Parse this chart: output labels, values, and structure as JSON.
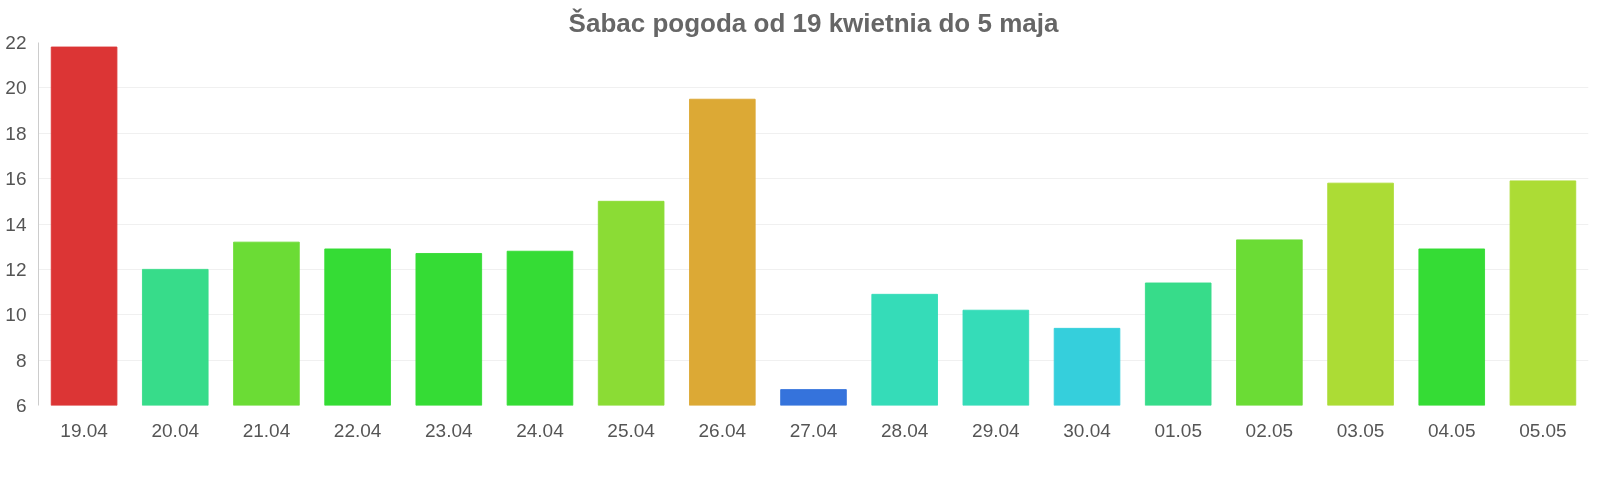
{
  "chart_data": {
    "type": "bar",
    "title": "Šabac pogoda od 19 kwietnia do 5 maja",
    "categories": [
      "19.04",
      "20.04",
      "21.04",
      "22.04",
      "23.04",
      "24.04",
      "25.04",
      "26.04",
      "27.04",
      "28.04",
      "29.04",
      "30.04",
      "01.05",
      "02.05",
      "03.05",
      "04.05",
      "05.05"
    ],
    "values": [
      21.8,
      12.0,
      13.2,
      12.9,
      12.7,
      12.8,
      15.0,
      19.5,
      6.7,
      10.9,
      10.2,
      9.4,
      11.4,
      13.3,
      15.8,
      12.9,
      15.9
    ],
    "colors": [
      "#dc3535",
      "#37dc8a",
      "#6bdc35",
      "#35dc35",
      "#35dc35",
      "#35dc35",
      "#8bdc35",
      "#dca935",
      "#3573dc",
      "#35dcb8",
      "#35dcb8",
      "#35cfdc",
      "#37dc8a",
      "#6bdc35",
      "#acdc35",
      "#35dc35",
      "#acdc35"
    ],
    "ylim": [
      6,
      22
    ],
    "yticks": [
      6,
      8,
      10,
      12,
      14,
      16,
      18,
      20,
      22
    ],
    "grid": "y"
  }
}
